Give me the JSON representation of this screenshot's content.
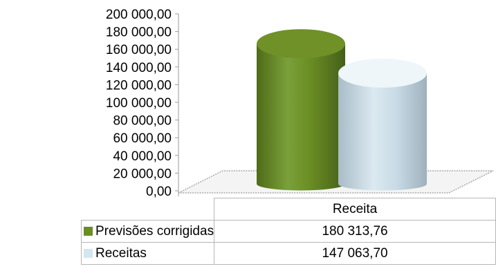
{
  "chart_data": {
    "type": "bar",
    "style": "3d-cylinder",
    "categories": [
      "Receita"
    ],
    "series": [
      {
        "name": "Previsões corrigidas",
        "values": [
          180313.76
        ],
        "value_labels": [
          "180 313,76"
        ],
        "color": "#6b8e23"
      },
      {
        "name": "Receitas",
        "values": [
          147063.7
        ],
        "value_labels": [
          "147 063,70"
        ],
        "color": "#d4e6ef"
      }
    ],
    "yticks": [
      "0,00",
      "20 000,00",
      "40 000,00",
      "60 000,00",
      "80 000,00",
      "100 000,00",
      "120 000,00",
      "140 000,00",
      "160 000,00",
      "180 000,00",
      "200 000,00"
    ],
    "ylim": [
      0,
      200000
    ],
    "grid": false,
    "legend": "data-table"
  }
}
